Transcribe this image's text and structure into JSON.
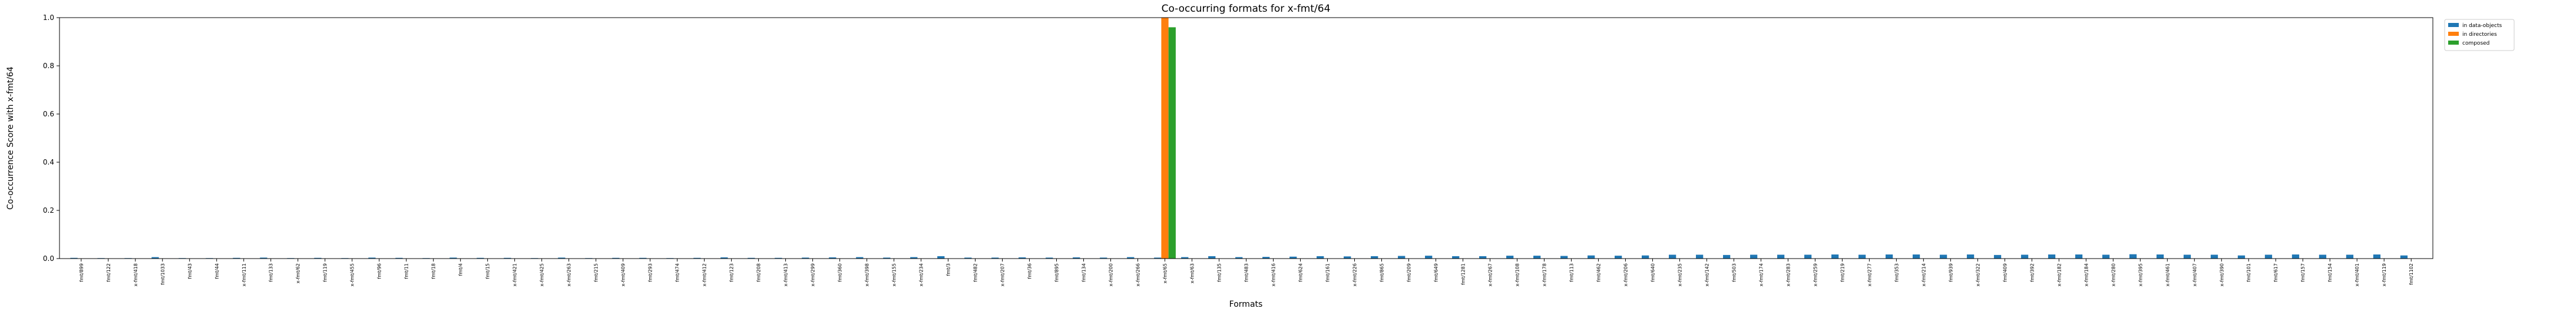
{
  "chart_data": {
    "type": "bar",
    "title": "Co-occurring formats for x-fmt/64",
    "x_label": "Formats",
    "y_label": "Co-occurrence Score with x-fmt/64",
    "categories": [
      "fmt/899",
      "fmt/122",
      "x-fmt/418",
      "fmt/1033",
      "fmt/43",
      "fmt/44",
      "x-fmt/111",
      "fmt/133",
      "x-fmt/62",
      "fmt/119",
      "x-fmt/455",
      "fmt/96",
      "fmt/11",
      "fmt/18",
      "fmt/4",
      "fmt/15",
      "x-fmt/421",
      "x-fmt/425",
      "x-fmt/263",
      "fmt/215",
      "x-fmt/409",
      "fmt/293",
      "fmt/474",
      "x-fmt/412",
      "fmt/123",
      "fmt/208",
      "x-fmt/413",
      "x-fmt/299",
      "fmt/360",
      "x-fmt/398",
      "x-fmt/155",
      "x-fmt/234",
      "fmt/3",
      "fmt/482",
      "x-fmt/207",
      "fmt/36",
      "fmt/895",
      "fmt/134",
      "x-fmt/200",
      "x-fmt/266",
      "x-fmt/65",
      "x-fmt/63",
      "fmt/135",
      "fmt/483",
      "x-fmt/416",
      "fmt/624",
      "fmt/161",
      "x-fmt/226",
      "fmt/865",
      "fmt/209",
      "fmt/649",
      "fmt/1281",
      "x-fmt/267",
      "x-fmt/108",
      "x-fmt/178",
      "fmt/113",
      "fmt/462",
      "x-fmt/206",
      "fmt/640",
      "x-fmt/235",
      "x-fmt/142",
      "fmt/503",
      "x-fmt/174",
      "x-fmt/283",
      "x-fmt/259",
      "fmt/219",
      "x-fmt/277",
      "fmt/353",
      "x-fmt/214",
      "fmt/939",
      "x-fmt/322",
      "fmt/409",
      "fmt/392",
      "x-fmt/182",
      "x-fmt/184",
      "x-fmt/280",
      "x-fmt/395",
      "x-fmt/461",
      "x-fmt/407",
      "x-fmt/390",
      "fmt/101",
      "fmt/617",
      "fmt/157",
      "fmt/154",
      "x-fmt/401",
      "x-fmt/119",
      "fmt/1102"
    ],
    "series": [
      {
        "name": "in data-objects",
        "color": "#1f77b4",
        "values": [
          0.003,
          0.002,
          0.002,
          0.006,
          0.002,
          0.002,
          0.003,
          0.004,
          0.002,
          0.003,
          0.002,
          0.004,
          0.003,
          0.002,
          0.004,
          0.003,
          0.003,
          0.002,
          0.004,
          0.002,
          0.003,
          0.003,
          0.002,
          0.003,
          0.005,
          0.003,
          0.003,
          0.004,
          0.005,
          0.006,
          0.004,
          0.006,
          0.01,
          0.004,
          0.004,
          0.005,
          0.004,
          0.005,
          0.004,
          0.006,
          0.004,
          0.006,
          0.01,
          0.006,
          0.007,
          0.008,
          0.01,
          0.009,
          0.01,
          0.011,
          0.012,
          0.01,
          0.01,
          0.012,
          0.012,
          0.011,
          0.013,
          0.012,
          0.013,
          0.016,
          0.016,
          0.015,
          0.016,
          0.016,
          0.016,
          0.017,
          0.016,
          0.017,
          0.017,
          0.016,
          0.017,
          0.015,
          0.016,
          0.017,
          0.017,
          0.016,
          0.018,
          0.017,
          0.016,
          0.016,
          0.013,
          0.016,
          0.017,
          0.016,
          0.016,
          0.017,
          0.013
        ]
      },
      {
        "name": "in directories",
        "color": "#ff7f0e",
        "values": [
          0,
          0,
          0,
          0,
          0,
          0,
          0,
          0,
          0,
          0,
          0,
          0,
          0,
          0,
          0,
          0,
          0,
          0,
          0,
          0,
          0,
          0,
          0,
          0,
          0,
          0,
          0,
          0,
          0,
          0,
          0,
          0,
          0,
          0,
          0,
          0,
          0,
          0,
          0,
          0,
          1.0,
          0,
          0,
          0,
          0,
          0,
          0,
          0,
          0,
          0,
          0,
          0,
          0,
          0,
          0,
          0,
          0,
          0,
          0,
          0,
          0,
          0,
          0,
          0,
          0,
          0,
          0,
          0,
          0,
          0,
          0,
          0,
          0,
          0,
          0,
          0,
          0,
          0,
          0,
          0,
          0,
          0,
          0,
          0,
          0,
          0,
          0
        ]
      },
      {
        "name": "composed",
        "color": "#2ca02c",
        "values": [
          0,
          0,
          0,
          0,
          0,
          0,
          0,
          0,
          0,
          0,
          0,
          0,
          0,
          0,
          0,
          0,
          0,
          0,
          0,
          0,
          0,
          0,
          0,
          0,
          0,
          0,
          0,
          0,
          0,
          0,
          0,
          0,
          0,
          0,
          0,
          0,
          0,
          0,
          0,
          0,
          0.96,
          0,
          0,
          0,
          0,
          0,
          0,
          0,
          0,
          0,
          0,
          0,
          0,
          0,
          0,
          0,
          0,
          0,
          0,
          0,
          0,
          0,
          0,
          0,
          0,
          0,
          0,
          0,
          0,
          0,
          0,
          0,
          0,
          0,
          0,
          0,
          0,
          0,
          0,
          0,
          0,
          0,
          0,
          0,
          0,
          0,
          0
        ]
      }
    ],
    "ylim": [
      0,
      1
    ],
    "yticks": [
      {
        "value": 0,
        "label": "0.0"
      },
      0.2,
      0.4,
      0.6,
      0.8,
      {
        "value": 1,
        "label": "1.0"
      }
    ],
    "grid": false,
    "legend": "outside upper right"
  }
}
